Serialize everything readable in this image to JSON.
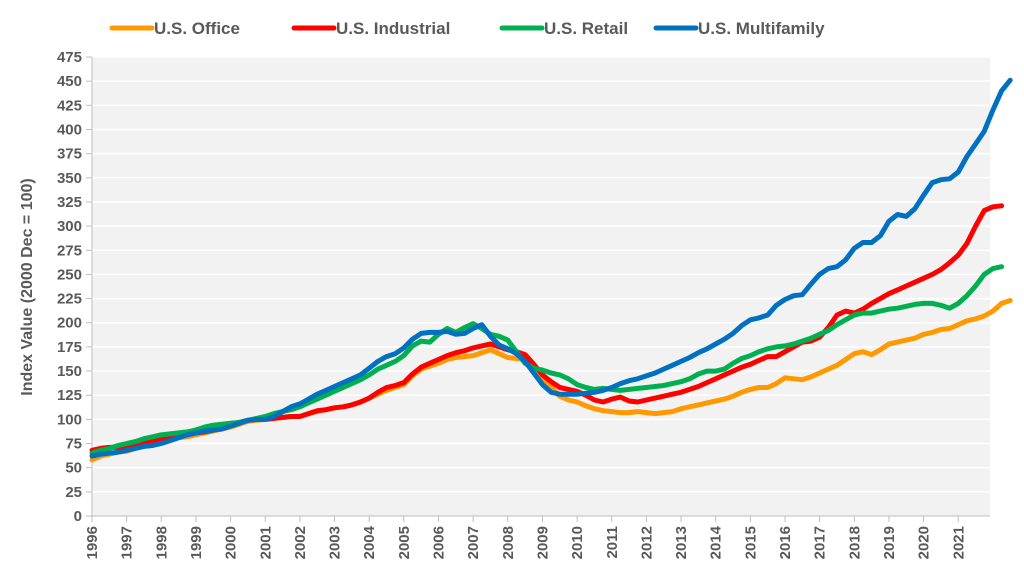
{
  "chart_data": {
    "type": "line",
    "title": "",
    "xlabel": "",
    "ylabel": "Index Value (2000 Dec = 100)",
    "ylim": [
      0,
      475
    ],
    "ytick_step": 25,
    "yticks": [
      "0",
      "25",
      "50",
      "75",
      "100",
      "125",
      "150",
      "175",
      "200",
      "225",
      "250",
      "275",
      "300",
      "325",
      "350",
      "375",
      "400",
      "425",
      "450",
      "475"
    ],
    "xticks": [
      "1996",
      "1997",
      "1998",
      "1999",
      "2000",
      "2001",
      "2002",
      "2003",
      "2004",
      "2005",
      "2006",
      "2007",
      "2008",
      "2009",
      "2010",
      "2011",
      "2012",
      "2013",
      "2014",
      "2015",
      "2016",
      "2017",
      "2018",
      "2019",
      "2020",
      "2021"
    ],
    "x_start": 1996,
    "x_frequency": "quarterly",
    "grid": "horizontal",
    "legend_position": "top",
    "series": [
      {
        "name": "U.S. Office",
        "color": "#FF9900",
        "values": [
          58,
          62,
          64,
          66,
          67,
          70,
          73,
          75,
          77,
          79,
          81,
          82,
          84,
          86,
          88,
          90,
          92,
          95,
          98,
          99,
          100,
          101,
          102,
          103,
          103,
          106,
          108,
          110,
          112,
          113,
          115,
          118,
          122,
          126,
          130,
          133,
          136,
          145,
          152,
          155,
          158,
          162,
          164,
          165,
          166,
          169,
          172,
          168,
          164,
          163,
          162,
          152,
          142,
          133,
          124,
          120,
          118,
          114,
          111,
          109,
          108,
          107,
          107,
          108,
          107,
          106,
          107,
          108,
          111,
          113,
          115,
          117,
          119,
          121,
          124,
          128,
          131,
          133,
          133,
          137,
          143,
          142,
          141,
          144,
          148,
          152,
          156,
          162,
          168,
          170,
          167,
          172,
          178,
          180,
          182,
          184,
          188,
          190,
          193,
          194,
          198,
          202,
          204,
          207,
          212,
          220,
          223
        ]
      },
      {
        "name": "U.S. Industrial",
        "color": "#FF0000",
        "values": [
          68,
          70,
          71,
          71,
          72,
          74,
          76,
          78,
          80,
          82,
          83,
          84,
          86,
          87,
          89,
          91,
          94,
          97,
          99,
          100,
          100,
          101,
          102,
          103,
          103,
          106,
          109,
          110,
          112,
          113,
          115,
          118,
          122,
          128,
          133,
          135,
          138,
          147,
          154,
          158,
          162,
          166,
          169,
          171,
          174,
          176,
          178,
          175,
          172,
          170,
          167,
          157,
          146,
          139,
          133,
          131,
          129,
          125,
          120,
          118,
          121,
          123,
          119,
          118,
          120,
          122,
          124,
          126,
          128,
          131,
          134,
          138,
          142,
          146,
          150,
          154,
          157,
          161,
          165,
          165,
          170,
          175,
          180,
          181,
          185,
          195,
          208,
          212,
          210,
          214,
          220,
          225,
          230,
          234,
          238,
          242,
          246,
          250,
          255,
          262,
          270,
          282,
          300,
          316,
          320,
          321
        ]
      },
      {
        "name": "U.S. Retail",
        "color": "#00B050",
        "values": [
          65,
          68,
          70,
          73,
          75,
          77,
          80,
          82,
          84,
          85,
          86,
          87,
          89,
          92,
          94,
          95,
          96,
          97,
          99,
          101,
          103,
          106,
          108,
          110,
          113,
          117,
          121,
          125,
          129,
          133,
          137,
          141,
          146,
          152,
          156,
          160,
          166,
          176,
          181,
          180,
          188,
          194,
          190,
          195,
          199,
          194,
          188,
          186,
          182,
          170,
          158,
          153,
          151,
          148,
          146,
          142,
          136,
          133,
          131,
          132,
          131,
          130,
          131,
          132,
          133,
          134,
          135,
          137,
          139,
          142,
          147,
          150,
          150,
          152,
          158,
          163,
          166,
          170,
          173,
          175,
          176,
          178,
          181,
          184,
          188,
          192,
          198,
          203,
          208,
          210,
          210,
          212,
          214,
          215,
          217,
          219,
          220,
          220,
          218,
          215,
          220,
          228,
          238,
          250,
          256,
          258
        ]
      },
      {
        "name": "U.S. Multifamily",
        "color": "#0070C0",
        "values": [
          62,
          64,
          65,
          66,
          68,
          70,
          72,
          73,
          75,
          78,
          81,
          84,
          86,
          88,
          89,
          90,
          93,
          96,
          99,
          100,
          100,
          103,
          108,
          113,
          116,
          121,
          126,
          130,
          134,
          138,
          142,
          146,
          153,
          160,
          165,
          168,
          174,
          183,
          189,
          190,
          190,
          191,
          188,
          189,
          194,
          198,
          186,
          177,
          173,
          168,
          160,
          148,
          136,
          128,
          126,
          126,
          126,
          127,
          128,
          130,
          133,
          137,
          140,
          142,
          145,
          148,
          152,
          156,
          160,
          164,
          169,
          173,
          178,
          183,
          189,
          197,
          203,
          205,
          208,
          218,
          224,
          228,
          229,
          240,
          250,
          256,
          258,
          265,
          277,
          283,
          283,
          290,
          305,
          312,
          310,
          318,
          332,
          345,
          348,
          349,
          356,
          372,
          385,
          398,
          420,
          440,
          451
        ]
      }
    ]
  },
  "legend": [
    {
      "label": "U.S. Office",
      "color": "#FF9900"
    },
    {
      "label": "U.S. Industrial",
      "color": "#FF0000"
    },
    {
      "label": "U.S. Retail",
      "color": "#00B050"
    },
    {
      "label": "U.S. Multifamily",
      "color": "#0070C0"
    }
  ]
}
